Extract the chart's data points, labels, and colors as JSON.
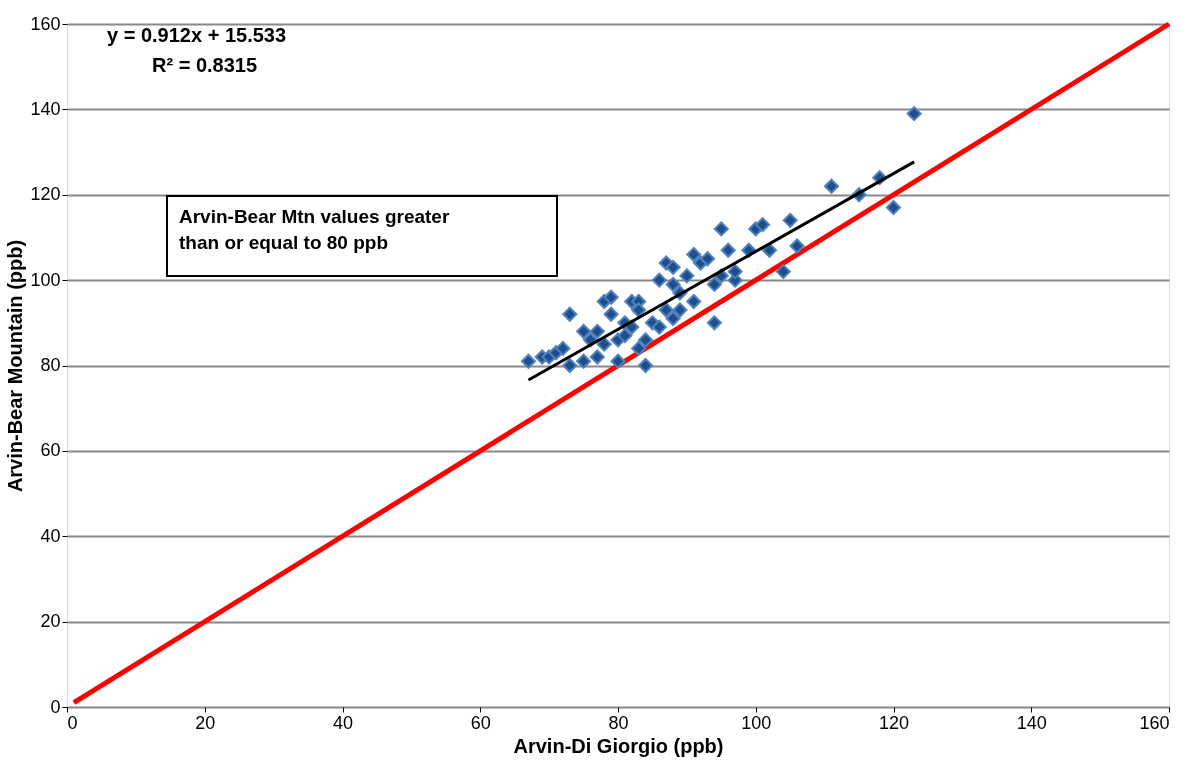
{
  "chart_data": {
    "type": "scatter",
    "xlabel": "Arvin-Di Giorgio (ppb)",
    "ylabel": "Arvin-Bear Mountain (ppb)",
    "xlim": [
      0,
      160
    ],
    "ylim": [
      0,
      160
    ],
    "xticks": [
      0,
      20,
      40,
      60,
      80,
      100,
      120,
      140,
      160
    ],
    "yticks": [
      0,
      20,
      40,
      60,
      80,
      100,
      120,
      140,
      160
    ],
    "grid": "y",
    "annotations": [
      "y = 0.912x + 15.533",
      "R² = 0.8315",
      "Arvin-Bear Mtn values greater than or equal to 80 ppb"
    ],
    "series": [
      {
        "marker": "diamond",
        "color": "#1f4e8c",
        "x": [
          67,
          69,
          70,
          71,
          72,
          73,
          73,
          75,
          75,
          76,
          77,
          77,
          78,
          78,
          79,
          79,
          80,
          80,
          81,
          81,
          82,
          82,
          83,
          83,
          83,
          84,
          84,
          85,
          86,
          86,
          87,
          87,
          88,
          88,
          88,
          89,
          89,
          90,
          91,
          91,
          92,
          93,
          94,
          94,
          95,
          95,
          96,
          97,
          97,
          99,
          100,
          101,
          102,
          104,
          105,
          106,
          111,
          115,
          118,
          120,
          123
        ],
        "values": [
          81,
          82,
          82,
          83,
          84,
          92,
          80,
          88,
          81,
          86,
          82,
          88,
          95,
          85,
          96,
          92,
          81,
          86,
          90,
          87,
          95,
          89,
          84,
          95,
          93,
          80,
          86,
          90,
          100,
          89,
          104,
          93,
          103,
          91,
          99,
          97,
          93,
          101,
          106,
          95,
          104,
          105,
          90,
          99,
          101,
          112,
          107,
          100,
          102,
          107,
          112,
          113,
          107,
          102,
          114,
          108,
          122,
          120,
          124,
          117,
          139
        ]
      },
      {
        "type": "line",
        "marker": "none",
        "line_style": "solid",
        "color": "#000000",
        "x": [
          67,
          123
        ],
        "values": [
          76.6,
          127.7
        ]
      },
      {
        "type": "line",
        "marker": "none",
        "line_style": "solid",
        "color": "#ff0000",
        "x": [
          1,
          160
        ],
        "values": [
          1,
          160
        ]
      }
    ]
  }
}
